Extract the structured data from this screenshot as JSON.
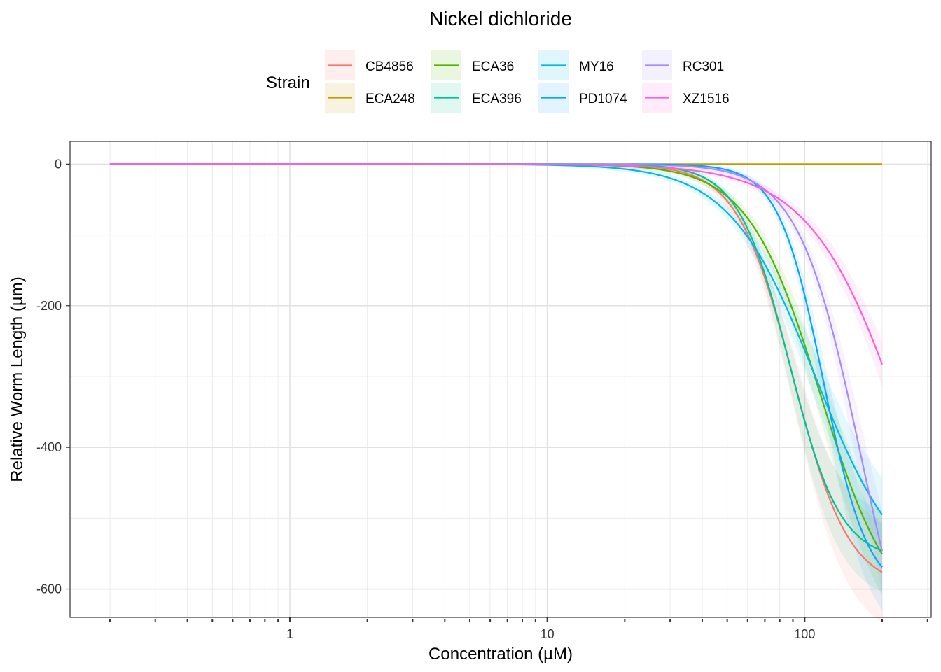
{
  "chart_data": {
    "type": "line",
    "title": "Nickel dichloride",
    "xlabel": "Concentration (µM)",
    "ylabel": "Relative Worm Length (µm)",
    "xscale": "log10",
    "xlim": [
      0.14,
      310
    ],
    "ylim": [
      -640,
      32
    ],
    "x_ticks": [
      1,
      10,
      100
    ],
    "x_tick_labels": [
      "1",
      "10",
      "100"
    ],
    "y_ticks": [
      0,
      -200,
      -400,
      -600
    ],
    "y_tick_labels": [
      "0",
      "-200",
      "-400",
      "-600"
    ],
    "x_range": [
      0.2,
      200
    ],
    "grid": true,
    "legend_title": "Strain",
    "legend_position": "top",
    "series": [
      {
        "name": "CB4856",
        "color": "#F8766D",
        "bottom": -600,
        "ec50": 90,
        "hill": 4.0,
        "band": 14
      },
      {
        "name": "ECA248",
        "color": "#C49A00",
        "bottom": 0,
        "ec50": 100,
        "hill": 1.0,
        "band": 0
      },
      {
        "name": "ECA36",
        "color": "#53B400",
        "bottom": -650,
        "ec50": 115,
        "hill": 3.1,
        "band": 12
      },
      {
        "name": "ECA396",
        "color": "#00C094",
        "bottom": -560,
        "ec50": 87,
        "hill": 4.4,
        "band": 12
      },
      {
        "name": "MY16",
        "color": "#00B6EB",
        "bottom": -600,
        "ec50": 110,
        "hill": 2.6,
        "band": 12
      },
      {
        "name": "PD1074",
        "color": "#06A4FF",
        "bottom": -610,
        "ec50": 118,
        "hill": 5.0,
        "band": 12
      },
      {
        "name": "RC301",
        "color": "#A58AFF",
        "bottom": -820,
        "ec50": 165,
        "hill": 3.6,
        "band": 12
      },
      {
        "name": "XZ1516",
        "color": "#FB61D7",
        "bottom": -800,
        "ec50": 260,
        "hill": 2.3,
        "band": 12
      }
    ]
  }
}
